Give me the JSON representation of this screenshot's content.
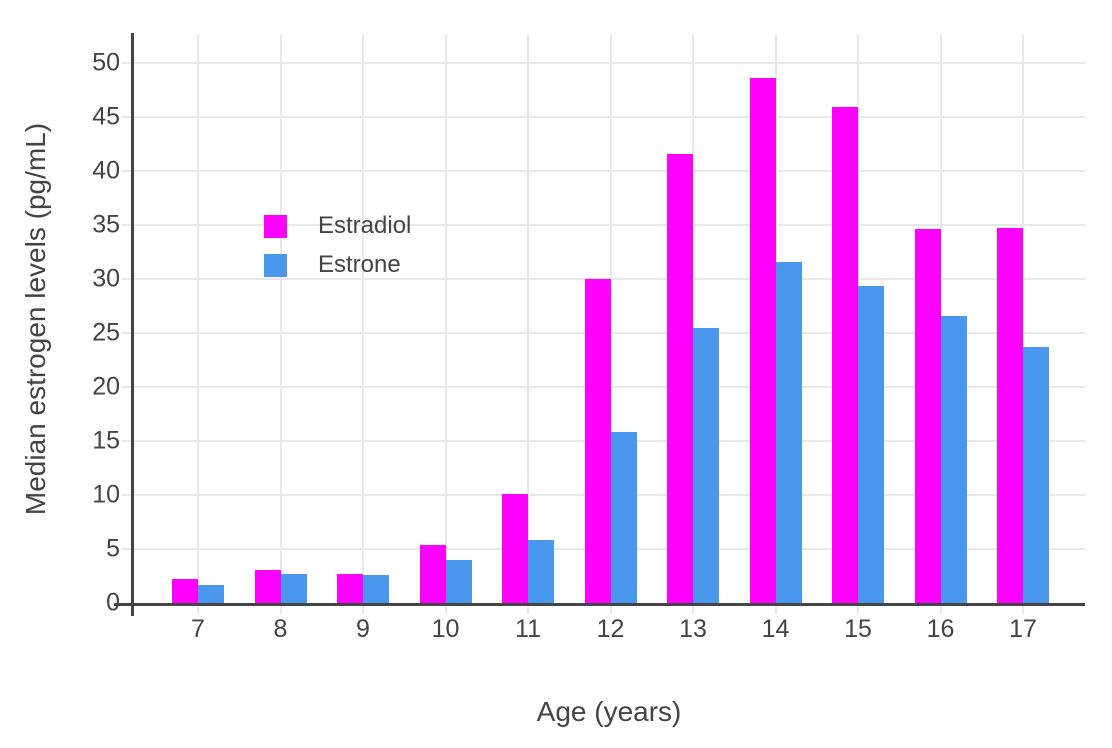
{
  "chart_data": {
    "type": "bar",
    "title": "",
    "xlabel": "Age (years)",
    "ylabel": "Median estrogen levels (pg/mL)",
    "categories": [
      "7",
      "8",
      "9",
      "10",
      "11",
      "12",
      "13",
      "14",
      "15",
      "16",
      "17"
    ],
    "series": [
      {
        "name": "Estradiol",
        "color": "#FF00FF",
        "values": [
          2.2,
          3.1,
          2.7,
          5.4,
          10.1,
          30.0,
          41.6,
          48.6,
          45.9,
          34.6,
          34.7
        ]
      },
      {
        "name": "Estrone",
        "color": "#4A98EE",
        "values": [
          1.7,
          2.7,
          2.6,
          4.0,
          5.8,
          15.8,
          25.5,
          31.6,
          29.4,
          26.6,
          23.7
        ]
      }
    ],
    "ylim": [
      0,
      52.6
    ],
    "yticks": [
      0,
      5,
      10,
      15,
      20,
      25,
      30,
      35,
      40,
      45,
      50
    ],
    "grid": true,
    "legend_position": "inside-top-left"
  },
  "styles": {
    "background": "#FFFFFF",
    "grid_color": "#E8E8E8",
    "axis_color": "#444444",
    "text_color": "#444444"
  }
}
